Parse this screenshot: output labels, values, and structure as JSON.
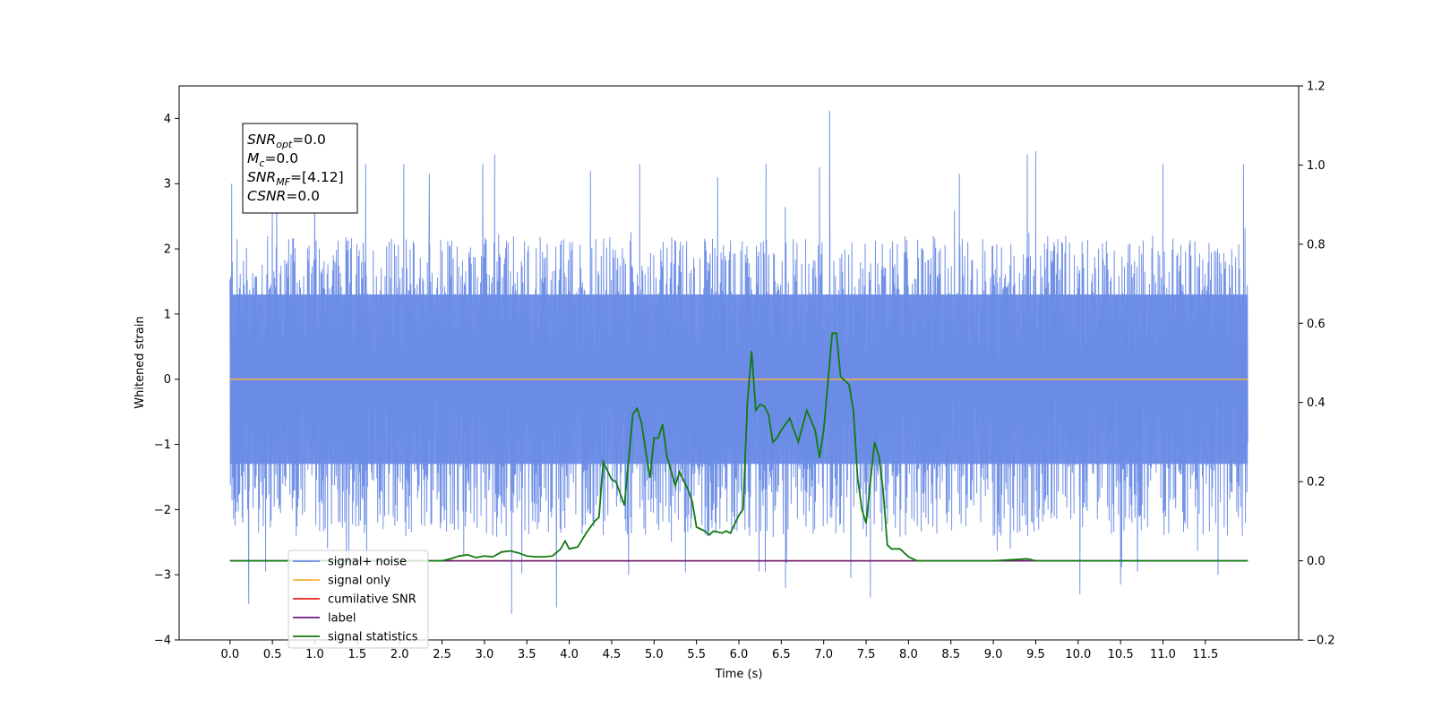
{
  "chart_data": {
    "type": "line",
    "xlabel": "Time (s)",
    "ylabel": "Whitened strain",
    "ylabel_right": "",
    "xlim": [
      -0.6,
      12.6
    ],
    "ylim": [
      -4.0,
      4.5
    ],
    "ylim_right": [
      -0.2,
      1.2
    ],
    "xticks": [
      0.0,
      0.5,
      1.0,
      1.5,
      2.0,
      2.5,
      3.0,
      3.5,
      4.0,
      4.5,
      5.0,
      5.5,
      6.0,
      6.5,
      7.0,
      7.5,
      8.0,
      8.5,
      9.0,
      9.5,
      10.0,
      10.5,
      11.0,
      11.5
    ],
    "xtick_labels": [
      "0.0",
      "0.5",
      "1.0",
      "1.5",
      "2.0",
      "2.5",
      "3.0",
      "3.5",
      "4.0",
      "4.5",
      "5.0",
      "5.5",
      "6.0",
      "6.5",
      "7.0",
      "7.5",
      "8.0",
      "8.5",
      "9.0",
      "9.5",
      "10.0",
      "10.5",
      "11.0",
      "11.5"
    ],
    "yticks_left": [
      -4,
      -3,
      -2,
      -1,
      0,
      1,
      2,
      3,
      4
    ],
    "ytick_labels_left": [
      "−4",
      "−3",
      "−2",
      "−1",
      "0",
      "1",
      "2",
      "3",
      "4"
    ],
    "yticks_right": [
      -0.2,
      0.0,
      0.2,
      0.4,
      0.6,
      0.8,
      1.0,
      1.2
    ],
    "ytick_labels_right": [
      "−0.2",
      "0.0",
      "0.2",
      "0.4",
      "0.6",
      "0.8",
      "1.0",
      "1.2"
    ],
    "grid": false,
    "legend_position": "lower-left",
    "annotation_box": {
      "position": "top-left",
      "lines": [
        {
          "base": "SNR",
          "sub": "opt",
          "rest": "=0.0"
        },
        {
          "base": "M",
          "sub": "c",
          "rest": "=0.0"
        },
        {
          "base": "SNR",
          "sub": "MF",
          "rest": "=[4.12]"
        },
        {
          "base": "CSNR",
          "sub": "",
          "rest": "=0.0"
        }
      ]
    },
    "series": [
      {
        "name": "signal+ noise",
        "axis": "left",
        "color": "#6a8ce6",
        "style": "noise",
        "x_range": [
          0.0,
          12.0
        ],
        "envelope": {
          "typical_low": -1.9,
          "typical_high": 2.2,
          "core_low": -1.3,
          "core_high": 1.3
        },
        "peaks": [
          {
            "x": 0.02,
            "y": 3.0
          },
          {
            "x": 0.15,
            "y": -2.2
          },
          {
            "x": 0.22,
            "y": -3.45
          },
          {
            "x": 0.42,
            "y": -2.95
          },
          {
            "x": 0.55,
            "y": 2.8
          },
          {
            "x": 1.0,
            "y": 3.1
          },
          {
            "x": 1.4,
            "y": -2.9
          },
          {
            "x": 1.6,
            "y": 3.3
          },
          {
            "x": 2.05,
            "y": 3.3
          },
          {
            "x": 2.35,
            "y": 3.15
          },
          {
            "x": 2.98,
            "y": 3.3
          },
          {
            "x": 3.12,
            "y": 3.45
          },
          {
            "x": 3.32,
            "y": -3.6
          },
          {
            "x": 3.85,
            "y": -3.5
          },
          {
            "x": 4.25,
            "y": 3.2
          },
          {
            "x": 4.7,
            "y": -3.0
          },
          {
            "x": 4.83,
            "y": 3.3
          },
          {
            "x": 5.75,
            "y": 3.1
          },
          {
            "x": 6.32,
            "y": 3.3
          },
          {
            "x": 6.55,
            "y": -3.2
          },
          {
            "x": 6.95,
            "y": 3.25
          },
          {
            "x": 7.07,
            "y": 4.12
          },
          {
            "x": 7.32,
            "y": -3.05
          },
          {
            "x": 7.55,
            "y": -3.35
          },
          {
            "x": 8.6,
            "y": 3.15
          },
          {
            "x": 9.2,
            "y": -2.6
          },
          {
            "x": 9.4,
            "y": 3.45
          },
          {
            "x": 9.5,
            "y": 3.5
          },
          {
            "x": 10.02,
            "y": -3.3
          },
          {
            "x": 10.5,
            "y": -3.15
          },
          {
            "x": 10.7,
            "y": -2.95
          },
          {
            "x": 11.0,
            "y": 3.3
          },
          {
            "x": 11.65,
            "y": -3.0
          },
          {
            "x": 11.95,
            "y": 3.3
          }
        ]
      },
      {
        "name": "signal only",
        "axis": "left",
        "color": "#f5b041",
        "x": [
          0.0,
          12.0
        ],
        "y": [
          0.0,
          0.0
        ]
      },
      {
        "name": "cumilative SNR",
        "axis": "right",
        "color": "#e6211a",
        "x": [
          0.0,
          12.0
        ],
        "y": [
          0.0,
          0.0
        ]
      },
      {
        "name": "label",
        "axis": "right",
        "color": "#6a1b7a",
        "x": [
          0.0,
          12.0
        ],
        "y": [
          0.0,
          0.0
        ]
      },
      {
        "name": "signal statistics",
        "axis": "right",
        "color": "#117a11",
        "x": [
          0.0,
          0.5,
          1.0,
          1.5,
          2.0,
          2.5,
          2.6,
          2.7,
          2.8,
          2.9,
          3.0,
          3.1,
          3.2,
          3.3,
          3.4,
          3.5,
          3.6,
          3.7,
          3.8,
          3.9,
          3.95,
          4.0,
          4.1,
          4.2,
          4.3,
          4.35,
          4.4,
          4.5,
          4.55,
          4.65,
          4.75,
          4.8,
          4.85,
          4.95,
          5.0,
          5.05,
          5.1,
          5.15,
          5.25,
          5.3,
          5.4,
          5.45,
          5.5,
          5.6,
          5.65,
          5.7,
          5.8,
          5.85,
          5.9,
          6.0,
          6.05,
          6.1,
          6.15,
          6.2,
          6.25,
          6.3,
          6.35,
          6.4,
          6.45,
          6.5,
          6.6,
          6.7,
          6.8,
          6.9,
          6.95,
          7.0,
          7.1,
          7.15,
          7.2,
          7.3,
          7.35,
          7.4,
          7.45,
          7.5,
          7.6,
          7.65,
          7.7,
          7.75,
          7.8,
          7.9,
          8.0,
          8.1,
          8.3,
          8.5,
          9.0,
          9.4,
          9.5,
          10.0,
          11.0,
          12.0
        ],
        "y": [
          0.0,
          0.0,
          0.0,
          0.0,
          0.0,
          0.0,
          0.005,
          0.012,
          0.015,
          0.008,
          0.012,
          0.01,
          0.022,
          0.025,
          0.02,
          0.012,
          0.01,
          0.01,
          0.012,
          0.03,
          0.05,
          0.03,
          0.035,
          0.07,
          0.1,
          0.11,
          0.25,
          0.205,
          0.2,
          0.14,
          0.37,
          0.385,
          0.35,
          0.21,
          0.31,
          0.31,
          0.345,
          0.265,
          0.19,
          0.225,
          0.18,
          0.15,
          0.085,
          0.075,
          0.065,
          0.075,
          0.07,
          0.075,
          0.07,
          0.115,
          0.13,
          0.4,
          0.53,
          0.38,
          0.395,
          0.39,
          0.37,
          0.3,
          0.31,
          0.33,
          0.36,
          0.3,
          0.38,
          0.33,
          0.26,
          0.33,
          0.575,
          0.575,
          0.465,
          0.445,
          0.38,
          0.21,
          0.13,
          0.095,
          0.3,
          0.265,
          0.18,
          0.04,
          0.03,
          0.03,
          0.01,
          0.0,
          0.0,
          0.0,
          0.0,
          0.005,
          0.0,
          0.0,
          0.0,
          0.0
        ]
      }
    ]
  }
}
